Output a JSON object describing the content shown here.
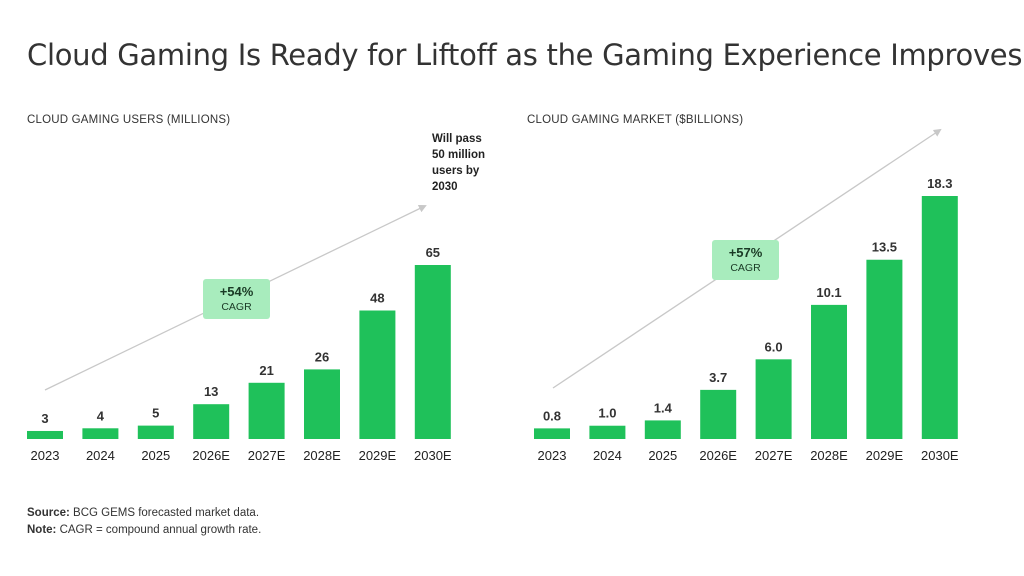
{
  "title": "Cloud Gaming Is Ready for Liftoff as the Gaming Experience Improves",
  "colors": {
    "bar": "#1fc15a",
    "cagr_box": "#a8ecbd",
    "arrow": "#c8c8c8"
  },
  "chart_data": [
    {
      "type": "bar",
      "title": "CLOUD GAMING USERS (MILLIONS)",
      "categories": [
        "2023",
        "2024",
        "2025",
        "2026E",
        "2027E",
        "2028E",
        "2029E",
        "2030E"
      ],
      "values": [
        3,
        4,
        5,
        13,
        21,
        26,
        48,
        65
      ],
      "value_labels": [
        "3",
        "4",
        "5",
        "13",
        "21",
        "26",
        "48",
        "65"
      ],
      "cagr": {
        "value": "+54%",
        "label": "CAGR"
      },
      "annotation": [
        "Will pass",
        "50 million",
        "users by",
        "2030"
      ]
    },
    {
      "type": "bar",
      "title": "CLOUD GAMING MARKET ($BILLIONS)",
      "categories": [
        "2023",
        "2024",
        "2025",
        "2026E",
        "2027E",
        "2028E",
        "2029E",
        "2030E"
      ],
      "values": [
        0.8,
        1.0,
        1.4,
        3.7,
        6.0,
        10.1,
        13.5,
        18.3
      ],
      "value_labels": [
        "0.8",
        "1.0",
        "1.4",
        "3.7",
        "6.0",
        "10.1",
        "13.5",
        "18.3"
      ],
      "cagr": {
        "value": "+57%",
        "label": "CAGR"
      }
    }
  ],
  "footer": {
    "source_label": "Source:",
    "source_text": " BCG GEMS forecasted market data.",
    "note_label": "Note:",
    "note_text": " CAGR = compound annual growth rate."
  }
}
